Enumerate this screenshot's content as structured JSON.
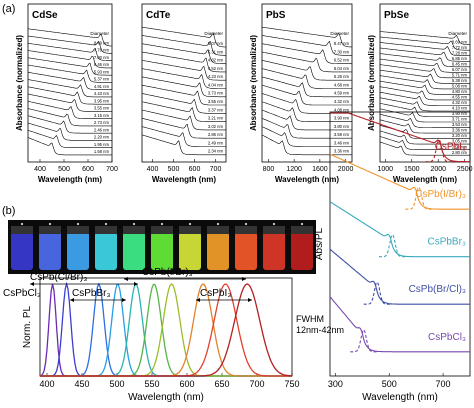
{
  "figure": {
    "panel_a_label": "(a)",
    "panel_b_label": "(b)"
  },
  "chart_data": [
    {
      "type": "line",
      "title": "CdSe",
      "xlabel": "Wavelength (nm)",
      "ylabel": "Absorbance (normalized)",
      "xlim": [
        350,
        700
      ],
      "xticks": [
        400,
        500,
        600,
        700
      ],
      "legend_title": "Diameter",
      "legend_placement": "top-right",
      "series_labels": [
        "8.49 nm",
        "7.76 nm",
        "7.00 nm",
        "6.46 nm",
        "5.93 nm",
        "5.37 nm",
        "4.91 nm",
        "4.43 nm",
        "3.95 nm",
        "3.55 nm",
        "3.15 nm",
        "2.73 nm",
        "2.46 nm",
        "2.20 nm",
        "1.95 nm",
        "1.58 nm"
      ],
      "peak_wavelengths_nm": [
        655,
        645,
        630,
        620,
        608,
        595,
        582,
        570,
        557,
        545,
        530,
        515,
        500,
        485,
        470,
        450
      ]
    },
    {
      "type": "line",
      "title": "CdTe",
      "xlabel": "Wavelength (nm)",
      "ylabel": "",
      "xlim": [
        350,
        750
      ],
      "xticks": [
        400,
        500,
        600,
        700
      ],
      "legend_title": "Diameter",
      "legend_placement": "top-right",
      "series_labels": [
        "6.07 nm",
        "5.31 nm",
        "4.82 nm",
        "4.52 nm",
        "4.23 nm",
        "4.04 nm",
        "3.73 nm",
        "3.55 nm",
        "3.37 nm",
        "3.21 nm",
        "3.02 nm",
        "2.86 nm",
        "2.49 nm",
        "2.34 nm"
      ],
      "peak_wavelengths_nm": [
        690,
        675,
        665,
        655,
        645,
        635,
        625,
        615,
        600,
        590,
        580,
        565,
        545,
        525
      ]
    },
    {
      "type": "line",
      "title": "PbS",
      "xlabel": "Wavelength (nm)",
      "ylabel": "Absorbance (normalized)",
      "xlim": [
        700,
        2100
      ],
      "xticks": [
        800,
        1200,
        1600,
        2000
      ],
      "legend_title": "Diameter",
      "legend_placement": "top-right",
      "series_labels": [
        "8.47 nm",
        "7.30 nm",
        "6.52 nm",
        "6.04 nm",
        "5.26 nm",
        "4.68 nm",
        "4.59 nm",
        "4.32 nm",
        "4.08 nm",
        "3.90 nm",
        "3.80 nm",
        "3.59 nm",
        "3.46 nm",
        "3.36 nm"
      ],
      "peak_wavelengths_nm": [
        1900,
        1750,
        1650,
        1550,
        1450,
        1380,
        1330,
        1280,
        1230,
        1180,
        1140,
        1100,
        1060,
        1020
      ]
    },
    {
      "type": "line",
      "title": "PbSe",
      "xlabel": "Wavelength (nm)",
      "ylabel": "Absorbance (normalized)",
      "xlim": [
        900,
        2600
      ],
      "xticks": [
        1000,
        1500,
        2000,
        2500
      ],
      "legend_title": "Diameter",
      "legend_placement": "top-right",
      "series_labels": [
        "8.69 nm",
        "7.72 nm",
        "7.28 nm",
        "6.85 nm",
        "6.45 nm",
        "6.07 nm",
        "5.71 nm",
        "5.38 nm",
        "5.08 nm",
        "4.80 nm",
        "4.55 nm",
        "4.32 nm",
        "4.10 nm",
        "3.90 nm",
        "3.71 nm",
        "3.53 nm",
        "3.36 nm",
        "3.20 nm",
        "3.05 nm",
        "2.92 nm",
        "2.80 nm"
      ],
      "peak_wavelengths_nm": [
        2350,
        2250,
        2180,
        2110,
        2040,
        1980,
        1920,
        1860,
        1800,
        1750,
        1700,
        1650,
        1600,
        1560,
        1520,
        1480,
        1440,
        1400,
        1360,
        1330,
        1300
      ]
    },
    {
      "type": "line",
      "title": "",
      "xlabel": "Wavelength (nm)",
      "ylabel": "Norm. PL",
      "xlim": [
        390,
        750
      ],
      "xticks": [
        400,
        450,
        500,
        550,
        600,
        650,
        700,
        750
      ],
      "annotations": {
        "cspbcl3": "CsPbCl₃",
        "cspbbr3": "CsPbBr₃",
        "cspbclbr": "CsPb(Cl/Br)₃",
        "cspbibr": "CsPb(I/Br)₃",
        "cspbi3": "CsPbI₃",
        "fwhm_title": "FWHM",
        "fwhm_range": "12nm-42nm"
      },
      "peaks_nm": [
        408,
        428,
        474,
        501,
        527,
        553,
        578,
        623,
        655,
        686
      ],
      "fwhm_nm": [
        12,
        14,
        18,
        20,
        22,
        24,
        28,
        32,
        38,
        42
      ],
      "colors": [
        "#6a2bb3",
        "#3a3fd0",
        "#2f6ee0",
        "#27a0e3",
        "#2bb3b0",
        "#58b548",
        "#9bbd2a",
        "#e3822a",
        "#e3402f",
        "#b51f22"
      ]
    },
    {
      "type": "line",
      "title": "",
      "xlabel": "Wavelength (nm)",
      "ylabel": "Abs/PL",
      "xlim": [
        280,
        800
      ],
      "xticks": [
        300,
        500,
        700
      ],
      "series": [
        {
          "name": "CsPbI₃",
          "color": "#b5242b",
          "abs_edge_nm": 690,
          "pl_peak_nm": 685
        },
        {
          "name": "CsPb(I/Br)₃",
          "color": "#f0942c",
          "abs_edge_nm": 600,
          "pl_peak_nm": 610
        },
        {
          "name": "CsPbBr₃",
          "color": "#3aa9bd",
          "abs_edge_nm": 505,
          "pl_peak_nm": 512
        },
        {
          "name": "CsPb(Br/Cl)₃",
          "color": "#3e4fa5",
          "abs_edge_nm": 450,
          "pl_peak_nm": 455
        },
        {
          "name": "CsPbCl₃",
          "color": "#7a49b0",
          "abs_edge_nm": 400,
          "pl_peak_nm": 405
        }
      ]
    }
  ],
  "photo": {
    "vial_colors": [
      "#3b3bd6",
      "#4d6ff0",
      "#3fa8f5",
      "#3fd8e8",
      "#3ff08a",
      "#66ee3a",
      "#d8e83a",
      "#f5a02a",
      "#f55a2a",
      "#e03a2a",
      "#c02020"
    ]
  }
}
